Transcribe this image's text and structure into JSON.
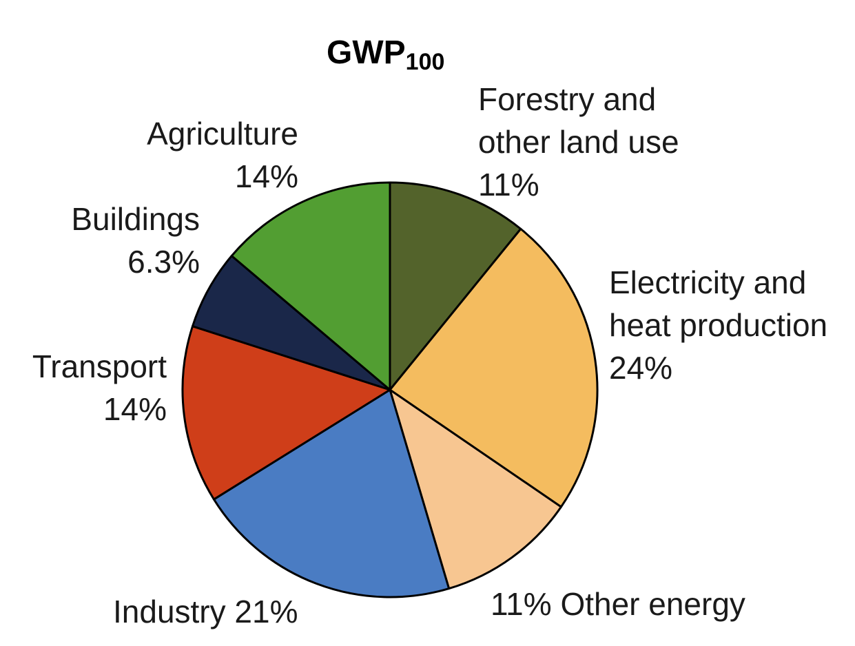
{
  "chart_data": {
    "type": "pie",
    "title": "GWP",
    "title_subscript": "100",
    "slices": [
      {
        "label_lines": [
          "Forestry and",
          "other land use"
        ],
        "value_label": "11%",
        "value": 11,
        "color": "#53632b"
      },
      {
        "label_lines": [
          "Electricity and",
          "heat production"
        ],
        "value_label": "24%",
        "value": 24,
        "color": "#f4bc5f"
      },
      {
        "label_lines": [
          "Other energy"
        ],
        "value_label": "11%",
        "value": 11,
        "color": "#f7c691"
      },
      {
        "label_lines": [
          "Industry"
        ],
        "value_label": "21%",
        "value": 21,
        "color": "#4a7cc3"
      },
      {
        "label_lines": [
          "Transport"
        ],
        "value_label": "14%",
        "value": 14,
        "color": "#cf3e19"
      },
      {
        "label_lines": [
          "Buildings"
        ],
        "value_label": "6.3%",
        "value": 6.3,
        "color": "#1a2749"
      },
      {
        "label_lines": [
          "Agriculture"
        ],
        "value_label": "14%",
        "value": 14,
        "color": "#529e32"
      }
    ],
    "start_angle": "top",
    "direction": "clockwise",
    "outline_color": "#000000"
  }
}
